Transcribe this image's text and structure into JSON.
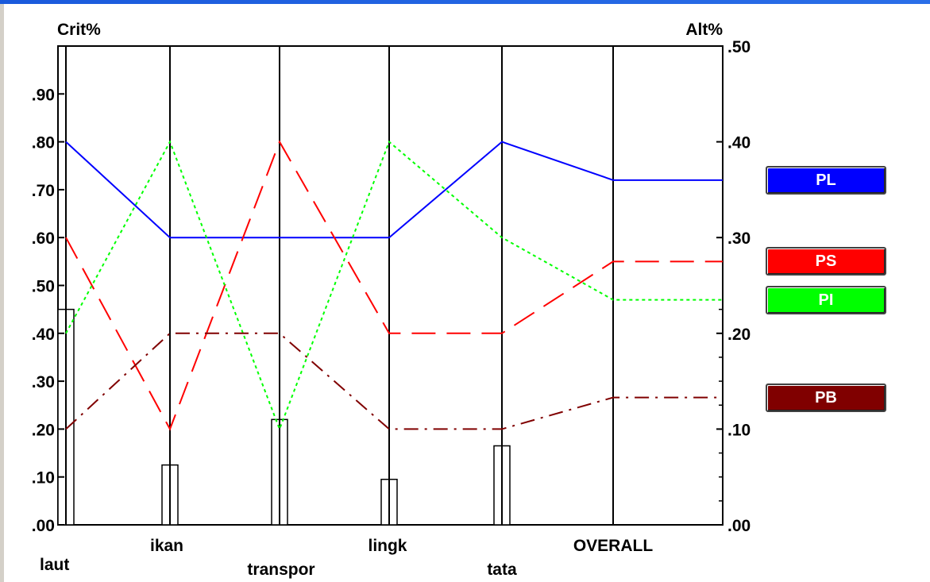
{
  "chart_data": {
    "type": "line",
    "left_axis_label": "Crit%",
    "right_axis_label": "Alt%",
    "left_ylim": [
      0,
      1.0
    ],
    "right_ylim": [
      0,
      0.5
    ],
    "left_ticks": [
      ".00",
      ".10",
      ".20",
      ".30",
      ".40",
      ".50",
      ".60",
      ".70",
      ".80",
      ".90"
    ],
    "right_ticks": [
      ".00",
      ".10",
      ".20",
      ".30",
      ".40",
      ".50"
    ],
    "categories": [
      "laut",
      "ikan",
      "transpor",
      "lingk",
      "tata",
      "OVERALL"
    ],
    "bars": [
      0.45,
      0.125,
      0.22,
      0.095,
      0.165
    ],
    "series": [
      {
        "name": "PL",
        "color": "#0000ff",
        "style": "solid",
        "values": [
          0.4,
          0.3,
          0.3,
          0.3,
          0.4,
          0.36
        ]
      },
      {
        "name": "PS",
        "color": "#ff0000",
        "style": "dash",
        "values": [
          0.3,
          0.1,
          0.4,
          0.2,
          0.2,
          0.275
        ]
      },
      {
        "name": "PI",
        "color": "#00ff00",
        "style": "dot",
        "values": [
          0.2,
          0.4,
          0.1,
          0.4,
          0.3,
          0.235
        ]
      },
      {
        "name": "PB",
        "color": "#800000",
        "style": "dashdot",
        "values": [
          0.1,
          0.2,
          0.2,
          0.1,
          0.1,
          0.133
        ]
      }
    ]
  }
}
